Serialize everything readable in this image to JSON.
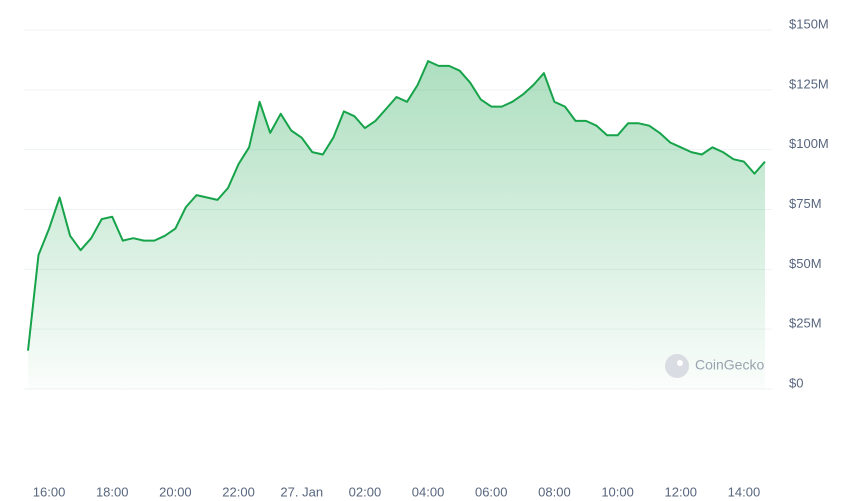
{
  "chart_data": {
    "type": "area",
    "color": "#16a34a",
    "watermark": "CoinGecko",
    "categories": [
      null,
      null,
      "16:00",
      null,
      null,
      null,
      null,
      null,
      "18:00",
      null,
      null,
      null,
      null,
      null,
      "20:00",
      null,
      null,
      null,
      null,
      null,
      "22:00",
      null,
      null,
      null,
      null,
      null,
      "27. Jan",
      null,
      null,
      null,
      null,
      null,
      "02:00",
      null,
      null,
      null,
      null,
      null,
      "04:00",
      null,
      null,
      null,
      null,
      null,
      "06:00",
      null,
      null,
      null,
      null,
      null,
      "08:00",
      null,
      null,
      null,
      null,
      null,
      "10:00",
      null,
      null,
      null,
      null,
      null,
      "12:00",
      null,
      null,
      null,
      null,
      null,
      "14:00",
      null,
      null
    ],
    "values": [
      16,
      56,
      67,
      80,
      64,
      58,
      63,
      71,
      72,
      62,
      63,
      62,
      62,
      64,
      67,
      76,
      81,
      80,
      79,
      84,
      94,
      101,
      120,
      107,
      115,
      108,
      105,
      99,
      98,
      105,
      116,
      114,
      109,
      112,
      117,
      122,
      120,
      127,
      137,
      135,
      135,
      133,
      128,
      121,
      118,
      118,
      120,
      123,
      127,
      132,
      120,
      118,
      112,
      112,
      110,
      106,
      106,
      111,
      111,
      110,
      107,
      103,
      101,
      99,
      98,
      101,
      99,
      96,
      95,
      90,
      95
    ],
    "ylim": [
      0,
      150
    ],
    "yticks": [
      {
        "value": 0,
        "label": "$0"
      },
      {
        "value": 25,
        "label": "$25M"
      },
      {
        "value": 50,
        "label": "$50M"
      },
      {
        "value": 75,
        "label": "$75M"
      },
      {
        "value": 100,
        "label": "$100M"
      },
      {
        "value": 125,
        "label": "$125M"
      },
      {
        "value": 150,
        "label": "$150M"
      }
    ],
    "grid": true
  }
}
